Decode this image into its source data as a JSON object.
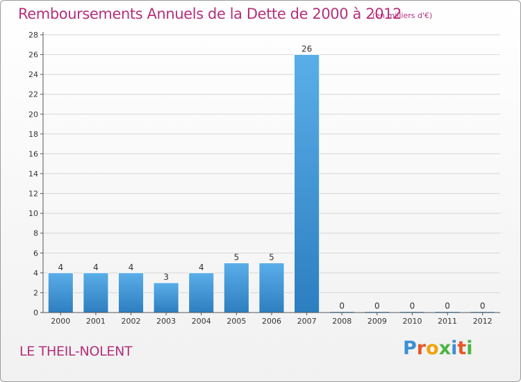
{
  "header": {
    "title": "Remboursements Annuels de la Dette de 2000 à 2012",
    "unit": "(en milliers d'€)"
  },
  "footer": {
    "city": "LE THEIL-NOLENT",
    "logo_letters": [
      "P",
      "r",
      "o",
      "x",
      "i",
      "t",
      "i"
    ],
    "logo_colors": [
      "#3a8fd6",
      "#e8562a",
      "#f2a30f",
      "#4bb543",
      "#3a8fd6",
      "#e8562a",
      "#4bb543"
    ]
  },
  "colors": {
    "bar_top": "#5aaee8",
    "bar_bottom": "#2d7ec0",
    "title": "#b3307a",
    "grid": "#d6d6d6",
    "axis": "#555555"
  },
  "chart_data": {
    "type": "bar",
    "title": "Remboursements Annuels de la Dette de 2000 à 2012",
    "xlabel": "",
    "ylabel": "",
    "categories": [
      "2000",
      "2001",
      "2002",
      "2003",
      "2004",
      "2005",
      "2006",
      "2007",
      "2008",
      "2009",
      "2010",
      "2011",
      "2012"
    ],
    "values": [
      4,
      4,
      4,
      3,
      4,
      5,
      5,
      26,
      0,
      0,
      0,
      0,
      0
    ],
    "ylim": [
      0,
      28
    ],
    "yticks": [
      0,
      2,
      4,
      6,
      8,
      10,
      12,
      14,
      16,
      18,
      20,
      22,
      24,
      26,
      28
    ],
    "grid": true,
    "legend": "none"
  }
}
